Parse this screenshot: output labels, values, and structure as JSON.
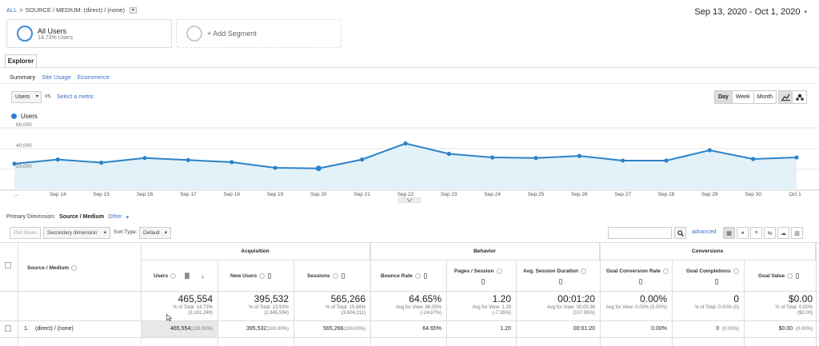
{
  "breadcrumb": {
    "all": "ALL",
    "sep": ">",
    "path": "SOURCE / MEDIUM: (direct) / (none)",
    "dropdown": "▾"
  },
  "date_range": {
    "label": "Sep 13, 2020 - Oct 1, 2020",
    "caret": "▾"
  },
  "segments": {
    "all": {
      "title": "All Users",
      "sub": "14.73% Users"
    },
    "add": {
      "label": "+ Add Segment"
    }
  },
  "tabs": {
    "explorer": "Explorer"
  },
  "subtabs": {
    "summary": "Summary",
    "site_usage": "Site Usage",
    "ecommerce": "Ecommerce"
  },
  "metric": {
    "selected": "Users",
    "caret": "▾",
    "vs": "vs.",
    "select_metric": "Select a metric"
  },
  "period": {
    "day": "Day",
    "week": "Week",
    "month": "Month"
  },
  "colors": {
    "line": "#2b82c9",
    "fill": "#e3f1f8",
    "accent": "#3b6fc7"
  },
  "chart_data": {
    "type": "area",
    "legend": "Users",
    "y_ticks": [
      "60,000",
      "40,000",
      "20,000"
    ],
    "ylim": [
      0,
      60000
    ],
    "x": [
      "Sep 13",
      "Sep 14",
      "Sep 15",
      "Sep 16",
      "Sep 17",
      "Sep 18",
      "Sep 19",
      "Sep 20",
      "Sep 21",
      "Sep 22",
      "Sep 23",
      "Sep 24",
      "Sep 25",
      "Sep 26",
      "Sep 27",
      "Sep 28",
      "Sep 29",
      "Sep 30",
      "Oct 1"
    ],
    "x_labels": [
      "...",
      "Sep 14",
      "Sep 15",
      "Sep 16",
      "Sep 17",
      "Sep 18",
      "Sep 19",
      "Sep 20",
      "Sep 21",
      "Sep 22",
      "Sep 23",
      "Sep 24",
      "Sep 25",
      "Sep 26",
      "Sep 27",
      "Sep 28",
      "Sep 29",
      "Sep 30",
      "Oct 1"
    ],
    "series": [
      {
        "name": "Users",
        "values": [
          25500,
          29500,
          26500,
          31000,
          29000,
          27000,
          21500,
          21000,
          29500,
          45000,
          35000,
          31500,
          31000,
          33000,
          28500,
          28500,
          38500,
          30000,
          31500
        ]
      }
    ]
  },
  "primary_dimension": {
    "label": "Primary Dimension:",
    "value": "Source / Medium",
    "other": "Other",
    "caret": "▾"
  },
  "toolbar": {
    "plot_rows": "Plot Rows",
    "secondary_dimension": "Secondary dimension",
    "sort_type_label": "Sort Type:",
    "sort_type_value": "Default",
    "advanced": "advanced"
  },
  "table": {
    "groups": {
      "acquisition": "Acquisition",
      "behavior": "Behavior",
      "conversions": "Conversions"
    },
    "headers": {
      "dimension": "Source / Medium",
      "users": "Users",
      "new_users": "New Users",
      "sessions": "Sessions",
      "bounce_rate": "Bounce Rate",
      "pages_session": "Pages / Session",
      "avg_session_duration": "Avg. Session Duration",
      "goal_conv_rate": "Goal Conversion Rate",
      "goal_completions": "Goal Completions",
      "goal_value": "Goal Value"
    },
    "totals": {
      "users": {
        "value": "465,554",
        "sub1": "% of Total: 14.73%",
        "sub2": "(3,161,249)"
      },
      "new_users": {
        "value": "395,532",
        "sub1": "% of Total: 13.93%",
        "sub2": "(2,845,594)"
      },
      "sessions": {
        "value": "565,266",
        "sub1": "% of Total: 15.68%",
        "sub2": "(3,604,211)"
      },
      "bounce_rate": {
        "value": "64.65%",
        "sub1": "Avg for View: 86.05%",
        "sub2": "(-24.87%)"
      },
      "pages_session": {
        "value": "1.20",
        "sub1": "Avg for View: 1.29",
        "sub2": "(-7.35%)"
      },
      "avg_session_duration": {
        "value": "00:01:20",
        "sub1": "Avg for View: 00:00:38",
        "sub2": "(107.95%)"
      },
      "goal_conv_rate": {
        "value": "0.00%",
        "sub1": "Avg for View: 0.00% (0.00%)",
        "sub2": ""
      },
      "goal_completions": {
        "value": "0",
        "sub1": "% of Total: 0.00% (0)",
        "sub2": ""
      },
      "goal_value": {
        "value": "$0.00",
        "sub1": "% of Total: 0.00%",
        "sub2": "($0.00)"
      }
    },
    "rows": [
      {
        "index": "1.",
        "dimension": "(direct) / (none)",
        "users": "465,554",
        "users_pct": "(100.00%)",
        "new_users": "395,532",
        "new_users_pct": "(100.00%)",
        "sessions": "565,266",
        "sessions_pct": "(100.00%)",
        "bounce_rate": "64.65%",
        "pages_session": "1.20",
        "avg_session_duration": "00:01:20",
        "goal_conv_rate": "0.00%",
        "goal_completions": "0",
        "goal_completions_pct": "(0.00%)",
        "goal_value": "$0.00",
        "goal_value_pct": "(0.00%)"
      }
    ]
  }
}
